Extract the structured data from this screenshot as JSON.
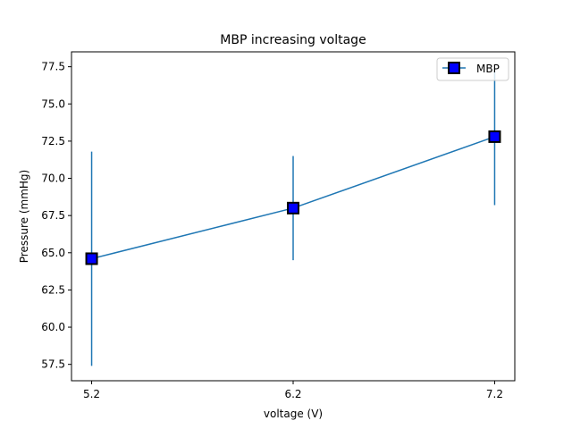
{
  "chart_data": {
    "type": "line",
    "title": "MBP increasing voltage",
    "xlabel": "voltage (V)",
    "ylabel": "Pressure (mmHg)",
    "x": [
      5.2,
      6.2,
      7.2
    ],
    "x_tick_labels": [
      "5.2",
      "6.2",
      "7.2"
    ],
    "xlim": [
      5.1,
      7.3
    ],
    "ylim": [
      56.4,
      78.5
    ],
    "y_ticks": [
      57.5,
      60.0,
      62.5,
      65.0,
      67.5,
      70.0,
      72.5,
      75.0,
      77.5
    ],
    "y_tick_labels": [
      "57.5",
      "60.0",
      "62.5",
      "65.0",
      "67.5",
      "70.0",
      "72.5",
      "75.0",
      "77.5"
    ],
    "grid": false,
    "legend_position": "top-right",
    "series": [
      {
        "name": "MBP",
        "values": [
          64.6,
          68.0,
          72.8
        ],
        "error": [
          7.2,
          3.5,
          4.6
        ],
        "line_color": "#1f77b4",
        "marker": "square",
        "marker_face_color": "#0000ff",
        "marker_edge_color": "#000000"
      }
    ]
  }
}
